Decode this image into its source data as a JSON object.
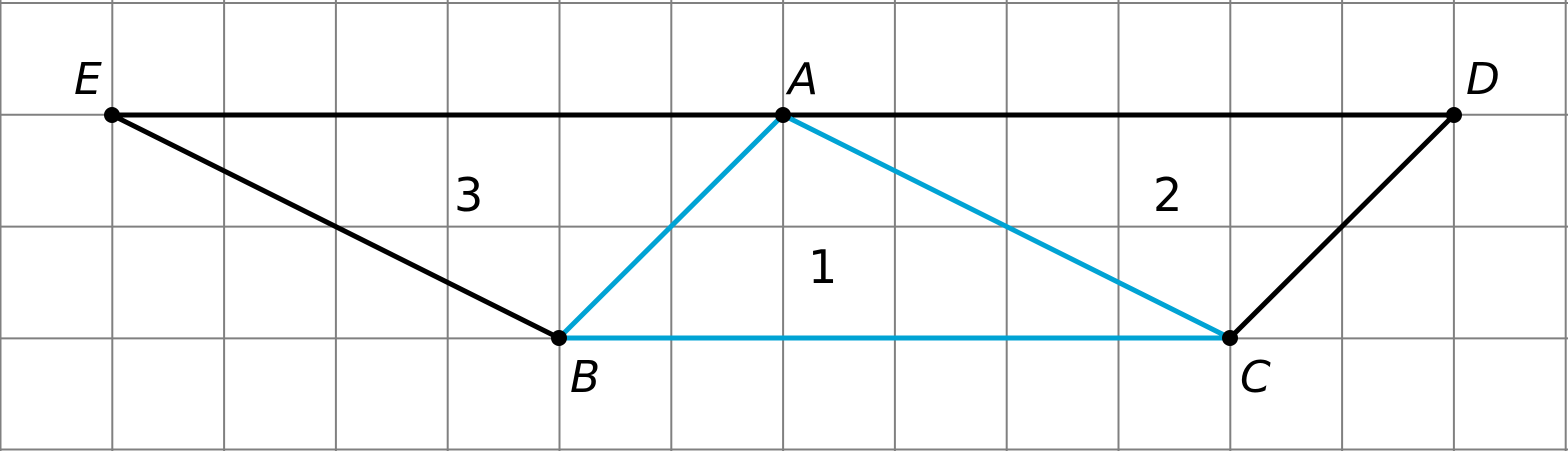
{
  "points": {
    "E": "E",
    "A": "A",
    "D": "D",
    "B": "B",
    "C": "C"
  },
  "regions": {
    "r1": "1",
    "r2": "2",
    "r3": "3"
  },
  "colors": {
    "grid": "#808080",
    "black_segments": "#000000",
    "triangle_1": "#00a3d4"
  }
}
